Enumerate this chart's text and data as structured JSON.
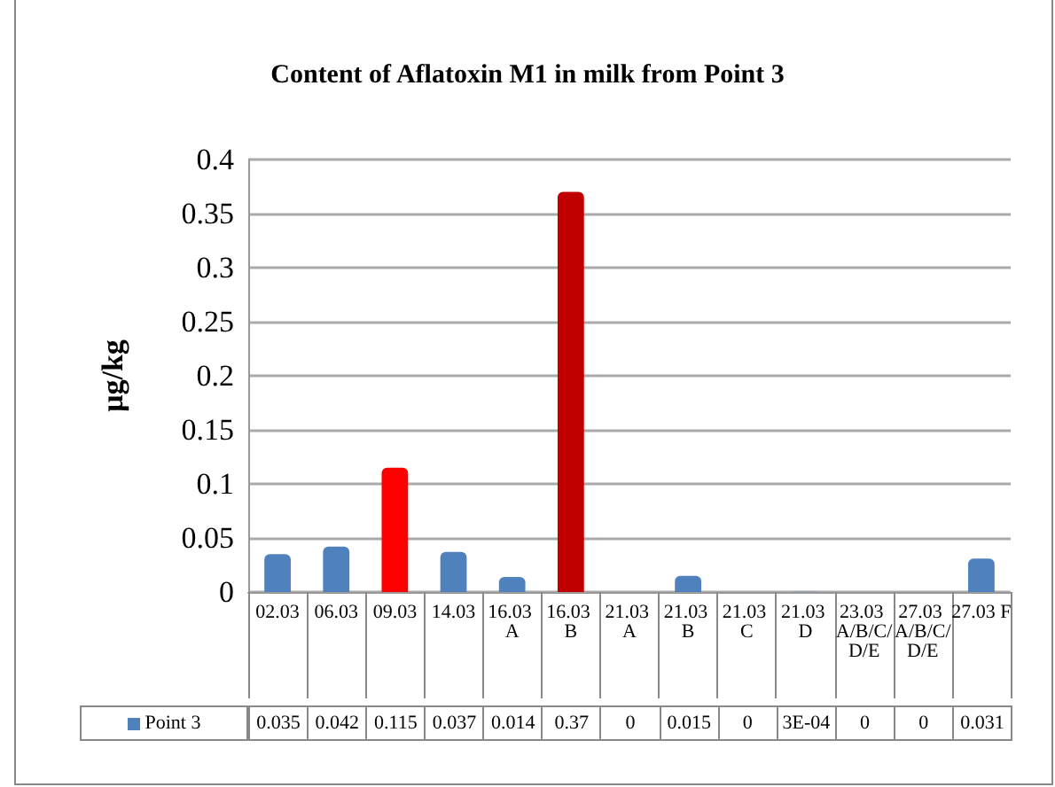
{
  "chart_data": {
    "type": "bar",
    "title": "Content of Aflatoxin M1 in milk from Point 3",
    "ylabel": "μg/kg",
    "categories": [
      "02.03",
      "06.03",
      "09.03",
      "14.03",
      "16.03 A",
      "16.03 B",
      "21.03 A",
      "21.03 B",
      "21.03 C",
      "21.03 D",
      "23.03 A/B/C/D/E",
      "27.03 A/B/C/D/E",
      "27.03 F"
    ],
    "series": [
      {
        "name": "Point 3",
        "color": "#4f81bd",
        "colors": [
          "#4f81bd",
          "#4f81bd",
          "#ff0000",
          "#4f81bd",
          "#4f81bd",
          "#c00000",
          "#4f81bd",
          "#4f81bd",
          "#4f81bd",
          "#4f81bd",
          "#4f81bd",
          "#4f81bd",
          "#4f81bd"
        ],
        "values": [
          0.035,
          0.042,
          0.115,
          0.037,
          0.014,
          0.37,
          0,
          0.015,
          0,
          0.0003,
          0,
          0,
          0.031
        ],
        "value_labels": [
          "0.035",
          "0.042",
          "0.115",
          "0.037",
          "0.014",
          "0.37",
          "0",
          "0.015",
          "0",
          "3E-04",
          "0",
          "0",
          "0.031"
        ]
      }
    ],
    "ylim": [
      0,
      0.4
    ],
    "yticks": [
      0,
      0.05,
      0.1,
      0.15,
      0.2,
      0.25,
      0.3,
      0.35,
      0.4
    ],
    "grid": "y",
    "legend": "bottom left"
  }
}
